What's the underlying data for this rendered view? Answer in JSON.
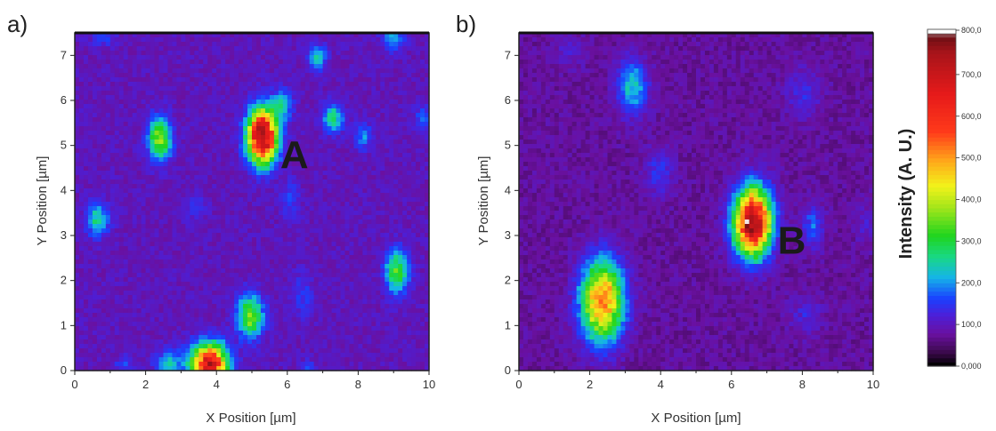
{
  "chart_data": [
    {
      "type": "heatmap",
      "panel_label": "a)",
      "xlabel": "X Position [µm]",
      "ylabel": "Y Position [µm]",
      "xlim": [
        0,
        10
      ],
      "ylim": [
        0,
        7.5
      ],
      "x_ticks": [
        "0",
        "2",
        "4",
        "6",
        "8",
        "10"
      ],
      "y_ticks": [
        "0",
        "1",
        "2",
        "3",
        "4",
        "5",
        "6",
        "7"
      ],
      "background_intensity": 95,
      "peak_label": {
        "text": "A",
        "x": 6.2,
        "y": 4.5
      },
      "spots": [
        {
          "x": 5.3,
          "y": 5.2,
          "intensity": 800,
          "sx": 0.28,
          "sy": 0.4
        },
        {
          "x": 3.8,
          "y": 0.15,
          "intensity": 680,
          "sx": 0.35,
          "sy": 0.3
        },
        {
          "x": 2.4,
          "y": 5.15,
          "intensity": 380,
          "sx": 0.22,
          "sy": 0.32
        },
        {
          "x": 4.95,
          "y": 1.2,
          "intensity": 360,
          "sx": 0.25,
          "sy": 0.32
        },
        {
          "x": 9.1,
          "y": 2.2,
          "intensity": 330,
          "sx": 0.22,
          "sy": 0.32
        },
        {
          "x": 0.65,
          "y": 3.35,
          "intensity": 260,
          "sx": 0.22,
          "sy": 0.25
        },
        {
          "x": 7.3,
          "y": 5.6,
          "intensity": 270,
          "sx": 0.2,
          "sy": 0.22
        },
        {
          "x": 5.85,
          "y": 5.9,
          "intensity": 240,
          "sx": 0.2,
          "sy": 0.22
        },
        {
          "x": 6.85,
          "y": 6.95,
          "intensity": 230,
          "sx": 0.18,
          "sy": 0.2
        },
        {
          "x": 2.65,
          "y": 0.15,
          "intensity": 230,
          "sx": 0.25,
          "sy": 0.22
        },
        {
          "x": 9.0,
          "y": 7.4,
          "intensity": 210,
          "sx": 0.22,
          "sy": 0.2
        },
        {
          "x": 8.15,
          "y": 5.2,
          "intensity": 190,
          "sx": 0.18,
          "sy": 0.2
        },
        {
          "x": 9.85,
          "y": 5.6,
          "intensity": 170,
          "sx": 0.18,
          "sy": 0.2
        },
        {
          "x": 6.1,
          "y": 3.8,
          "intensity": 150,
          "sx": 0.18,
          "sy": 0.3
        },
        {
          "x": 6.45,
          "y": 1.7,
          "intensity": 150,
          "sx": 0.2,
          "sy": 0.35
        },
        {
          "x": 1.4,
          "y": 0.1,
          "intensity": 150,
          "sx": 0.2,
          "sy": 0.15
        },
        {
          "x": 3.4,
          "y": 3.6,
          "intensity": 145,
          "sx": 0.2,
          "sy": 0.2
        },
        {
          "x": 0.8,
          "y": 7.4,
          "intensity": 150,
          "sx": 0.25,
          "sy": 0.15
        },
        {
          "x": 6.6,
          "y": 0.05,
          "intensity": 160,
          "sx": 0.15,
          "sy": 0.12
        }
      ]
    },
    {
      "type": "heatmap",
      "panel_label": "b)",
      "xlabel": "X Position [µm]",
      "ylabel": "Y Position [µm]",
      "xlim": [
        0,
        10
      ],
      "ylim": [
        0,
        7.5
      ],
      "x_ticks": [
        "0",
        "2",
        "4",
        "6",
        "8",
        "10"
      ],
      "y_ticks": [
        "0",
        "1",
        "2",
        "3",
        "4",
        "5",
        "6",
        "7"
      ],
      "background_intensity": 75,
      "peak_label": {
        "text": "B",
        "x": 7.7,
        "y": 2.6
      },
      "spots": [
        {
          "x": 6.6,
          "y": 3.3,
          "intensity": 780,
          "sx": 0.35,
          "sy": 0.5
        },
        {
          "x": 2.35,
          "y": 1.55,
          "intensity": 540,
          "sx": 0.4,
          "sy": 0.6
        },
        {
          "x": 3.2,
          "y": 6.3,
          "intensity": 230,
          "sx": 0.3,
          "sy": 0.4
        },
        {
          "x": 3.95,
          "y": 4.4,
          "intensity": 150,
          "sx": 0.25,
          "sy": 0.35
        },
        {
          "x": 8.3,
          "y": 3.2,
          "intensity": 170,
          "sx": 0.2,
          "sy": 0.35
        },
        {
          "x": 8.05,
          "y": 6.2,
          "intensity": 130,
          "sx": 0.35,
          "sy": 0.35
        },
        {
          "x": 8.1,
          "y": 1.2,
          "intensity": 125,
          "sx": 0.3,
          "sy": 0.3
        },
        {
          "x": 1.5,
          "y": 7.1,
          "intensity": 115,
          "sx": 0.3,
          "sy": 0.25
        },
        {
          "x": 9.8,
          "y": 3.2,
          "intensity": 110,
          "sx": 0.2,
          "sy": 0.3
        }
      ]
    }
  ],
  "colorbar": {
    "title": "Intensity (A. U.)",
    "min": 0,
    "max": 800,
    "ticks": [
      "0,000",
      "100,0",
      "200,0",
      "300,0",
      "400,0",
      "500,0",
      "600,0",
      "700,0",
      "800,0"
    ],
    "tick_values": [
      0,
      100,
      200,
      300,
      400,
      500,
      600,
      700,
      800
    ],
    "colors": [
      {
        "v": 0,
        "c": "#000000"
      },
      {
        "v": 30,
        "c": "#3a0a4a"
      },
      {
        "v": 75,
        "c": "#6a10a0"
      },
      {
        "v": 120,
        "c": "#4c1fd8"
      },
      {
        "v": 160,
        "c": "#1a40ff"
      },
      {
        "v": 210,
        "c": "#15b4e8"
      },
      {
        "v": 260,
        "c": "#19d884"
      },
      {
        "v": 310,
        "c": "#1fd51f"
      },
      {
        "v": 380,
        "c": "#a6e61a"
      },
      {
        "v": 430,
        "c": "#f2f21a"
      },
      {
        "v": 490,
        "c": "#ffa81a"
      },
      {
        "v": 560,
        "c": "#ff3a1a"
      },
      {
        "v": 650,
        "c": "#e61a1a"
      },
      {
        "v": 750,
        "c": "#a8141a"
      },
      {
        "v": 790,
        "c": "#6a0e14"
      },
      {
        "v": 800,
        "c": "#ffffff"
      }
    ]
  }
}
